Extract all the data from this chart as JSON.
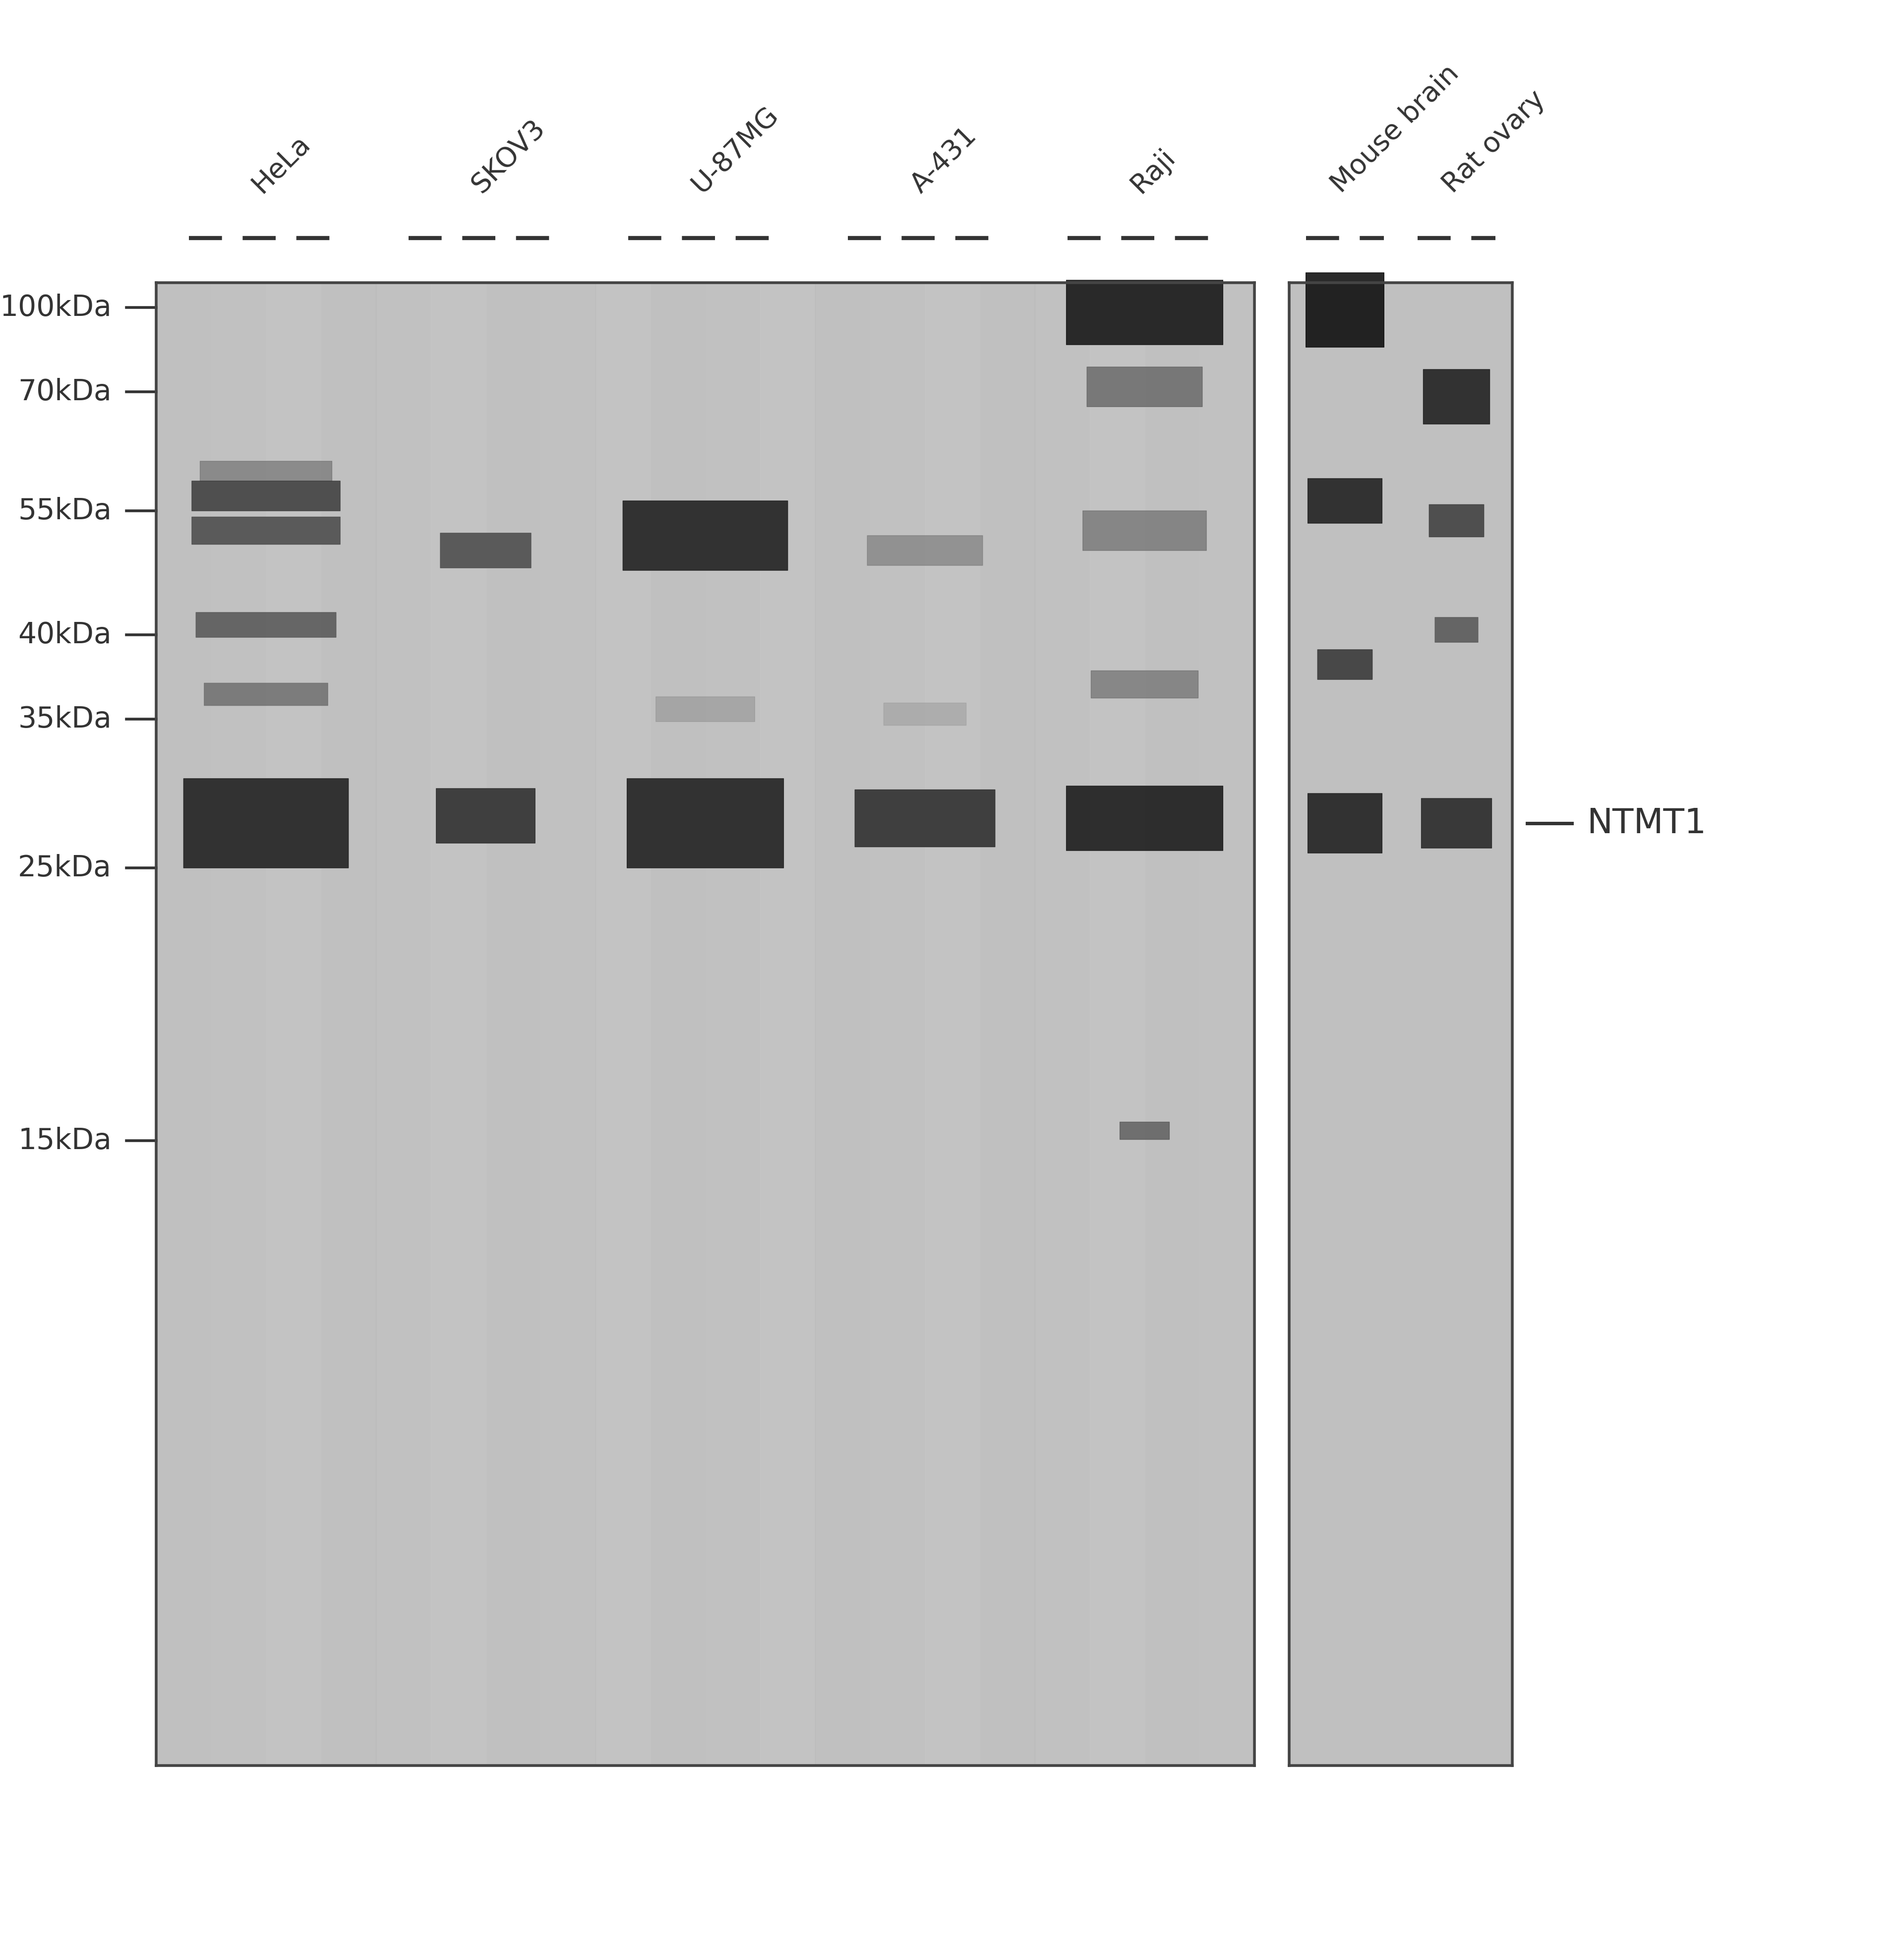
{
  "figure_width": 38.4,
  "figure_height": 39.4,
  "bg_color": "#ffffff",
  "gel_bg": "#c8c8c8",
  "gel_bg_light": "#d8d8d8",
  "lane_labels": [
    "HeLa",
    "SKOV3",
    "U-87MG",
    "A-431",
    "Raji",
    "Mouse brain",
    "Rat ovary"
  ],
  "mw_markers": [
    "100kDa",
    "70kDa",
    "55kDa",
    "40kDa",
    "35kDa",
    "25kDa",
    "15kDa"
  ],
  "mw_values": [
    100,
    70,
    55,
    40,
    35,
    25,
    15
  ],
  "ntmt1_label": "NTMT1",
  "panel1_lanes": [
    "HeLa",
    "SKOV3",
    "U-87MG",
    "A-431",
    "Raji"
  ],
  "panel2_lanes": [
    "Mouse brain",
    "Rat ovary"
  ],
  "annotation_color": "#333333"
}
